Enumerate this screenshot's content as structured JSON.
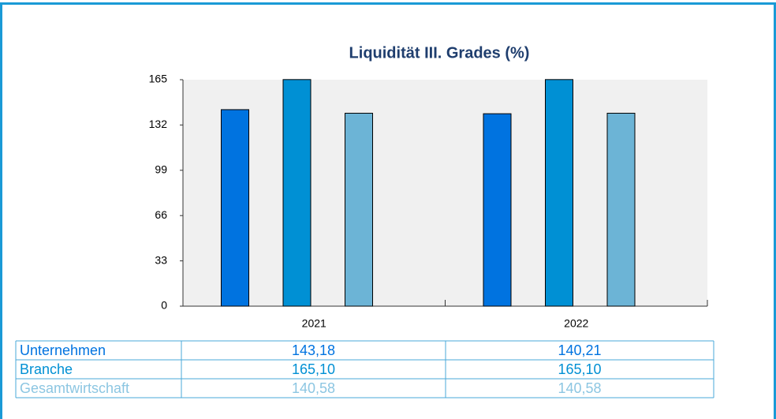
{
  "chart_data": {
    "type": "bar",
    "title": "Liquidität III. Grades (%)",
    "categories": [
      "2021",
      "2022"
    ],
    "series": [
      {
        "name": "Unternehmen",
        "color": "#0073e0",
        "values": [
          143.18,
          140.21
        ],
        "value_labels": [
          "143,18",
          "140,21"
        ]
      },
      {
        "name": "Branche",
        "color": "#0090d4",
        "values": [
          165.1,
          165.1
        ],
        "value_labels": [
          "165,10",
          "165,10"
        ]
      },
      {
        "name": "Gesamtwirtschaft",
        "color": "#6cb4d6",
        "values": [
          140.58,
          140.58
        ],
        "value_labels": [
          "140,58",
          "140,58"
        ]
      }
    ],
    "ylim": [
      0,
      165
    ],
    "yticks": [
      0,
      33,
      66,
      99,
      132,
      165
    ],
    "grid": false
  }
}
